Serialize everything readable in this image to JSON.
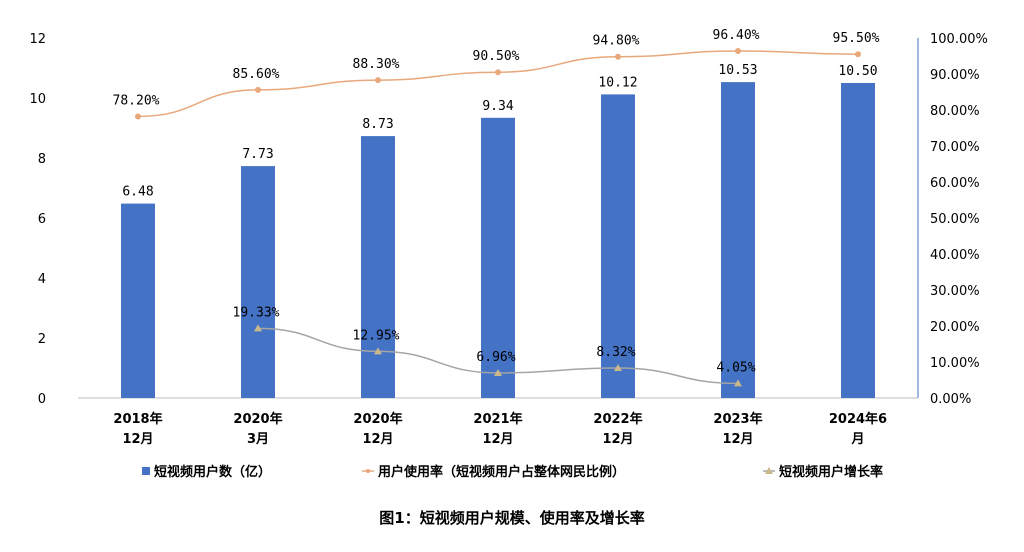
{
  "chart_data": {
    "type": "bar",
    "categories": [
      [
        "2018年",
        "12月"
      ],
      [
        "2020年",
        "3月"
      ],
      [
        "2020年",
        "12月"
      ],
      [
        "2021年",
        "12月"
      ],
      [
        "2022年",
        "12月"
      ],
      [
        "2023年",
        "12月"
      ],
      [
        "2024年6",
        "月"
      ]
    ],
    "series": [
      {
        "name": "短视频用户数（亿）",
        "type": "bar",
        "axis": "left",
        "color": "#4472C4",
        "values": [
          6.48,
          7.73,
          8.73,
          9.34,
          10.12,
          10.53,
          10.5
        ],
        "labels": [
          "6.48",
          "7.73",
          "8.73",
          "9.34",
          "10.12",
          "10.53",
          "10.50"
        ]
      },
      {
        "name": "用户使用率（短视频用户占整体网民比例）",
        "type": "line",
        "axis": "right",
        "color": "#E8A87C",
        "values": [
          78.2,
          85.6,
          88.3,
          90.5,
          94.8,
          96.4,
          95.5
        ],
        "labels": [
          "78.20%",
          "85.60%",
          "88.30%",
          "90.50%",
          "94.80%",
          "96.40%",
          "95.50%"
        ]
      },
      {
        "name": "短视频用户增长率",
        "type": "line",
        "axis": "right",
        "color": "#A5A5A5",
        "marker_color": "#C9B98A",
        "values": [
          null,
          19.33,
          12.95,
          6.96,
          8.32,
          4.05,
          null
        ],
        "labels": [
          "",
          "19.33%",
          "12.95%",
          "6.96%",
          "8.32%",
          "4.05%",
          ""
        ]
      }
    ],
    "y_left": {
      "ylim": [
        0,
        12
      ],
      "ticks": [
        "0",
        "2",
        "4",
        "6",
        "8",
        "10",
        "12"
      ]
    },
    "y_right": {
      "ylim": [
        0,
        100
      ],
      "ticks": [
        "0.00%",
        "10.00%",
        "20.00%",
        "30.00%",
        "40.00%",
        "50.00%",
        "60.00%",
        "70.00%",
        "80.00%",
        "90.00%",
        "100.00%"
      ]
    },
    "grid": false,
    "legend_position": "bottom",
    "caption": "图1：短视频用户规模、使用率及增长率"
  }
}
